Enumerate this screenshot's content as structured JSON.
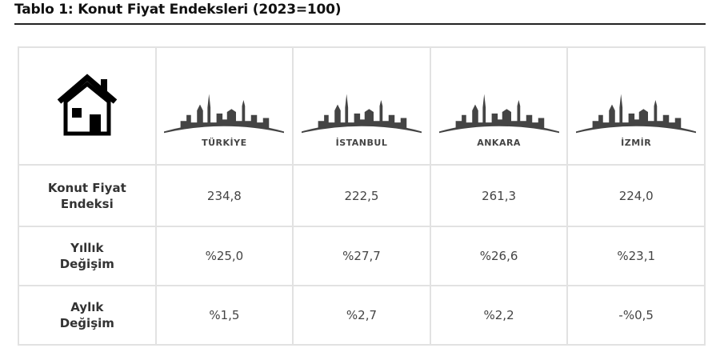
{
  "header": {
    "title": "Tablo 1: Konut Fiyat Endeksleri (2023=100)"
  },
  "table": {
    "columns": [
      "TÜRKİYE",
      "İSTANBUL",
      "ANKARA",
      "İZMİR"
    ],
    "rows": [
      {
        "label": [
          "Konut Fiyat",
          "Endeksi"
        ],
        "values": [
          "234,8",
          "222,5",
          "261,3",
          "224,0"
        ]
      },
      {
        "label": [
          "Yıllık",
          "Değişim"
        ],
        "values": [
          "%25,0",
          "%27,7",
          "%26,6",
          "%23,1"
        ]
      },
      {
        "label": [
          "Aylık",
          "Değişim"
        ],
        "values": [
          "%1,5",
          "%2,7",
          "%2,2",
          "-%0,5"
        ]
      }
    ]
  }
}
